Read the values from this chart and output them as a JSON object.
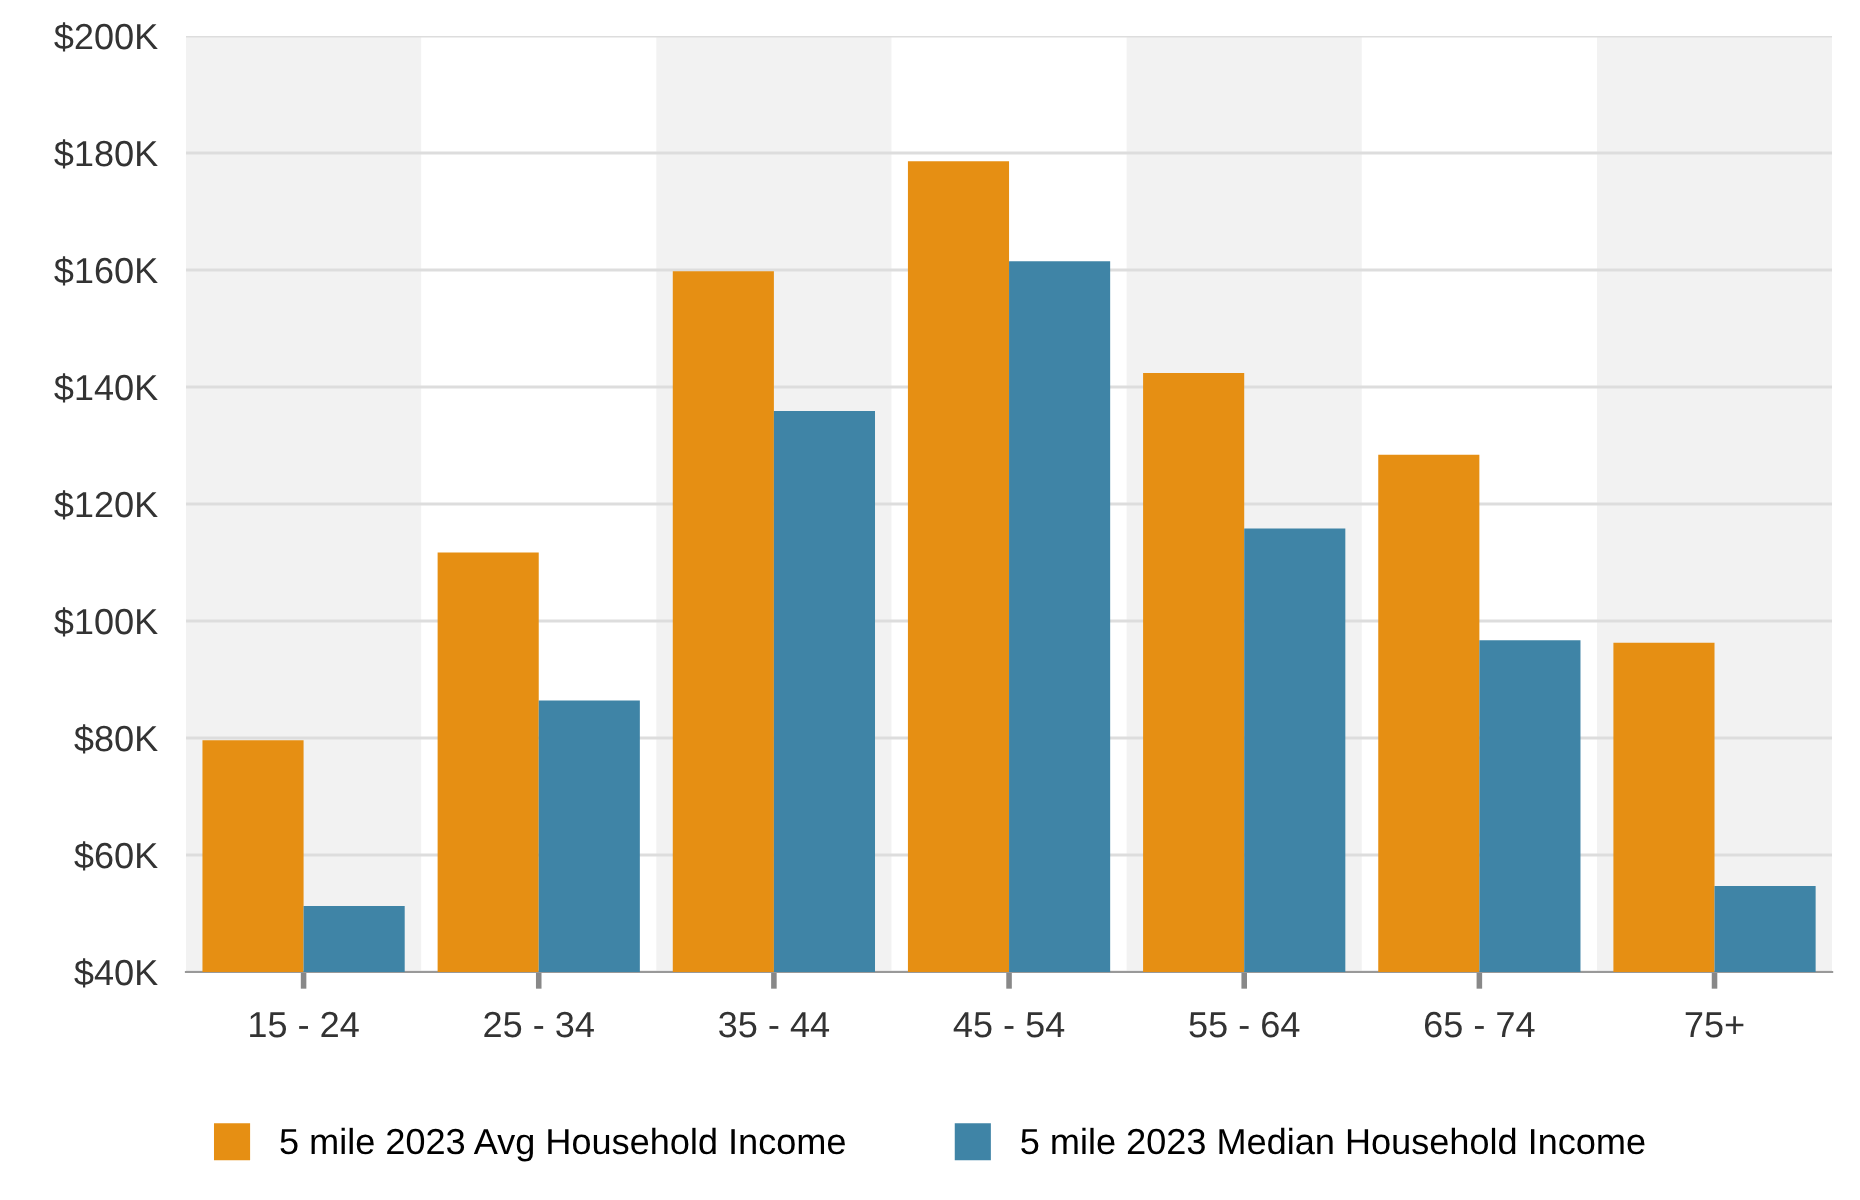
{
  "chart_data": {
    "type": "bar",
    "categories": [
      "15 - 24",
      "25 - 34",
      "35 - 44",
      "45 - 54",
      "55 - 64",
      "65 - 74",
      "75+"
    ],
    "series": [
      {
        "name": "5 mile 2023 Avg Household Income",
        "color": "#e68f13",
        "values": [
          79.6,
          111.7,
          159.8,
          178.6,
          142.4,
          128.4,
          96.3
        ]
      },
      {
        "name": "5 mile 2023 Median Household Income",
        "color": "#3f84a6",
        "values": [
          51.3,
          86.4,
          135.9,
          161.5,
          115.8,
          96.7,
          54.7
        ]
      }
    ],
    "ylim": [
      40,
      200
    ],
    "yticks": [
      {
        "value": 40,
        "label": "$40K"
      },
      {
        "value": 60,
        "label": "$60K"
      },
      {
        "value": 80,
        "label": "$80K"
      },
      {
        "value": 100,
        "label": "$100K"
      },
      {
        "value": 120,
        "label": "$120K"
      },
      {
        "value": 140,
        "label": "$140K"
      },
      {
        "value": 160,
        "label": "$160K"
      },
      {
        "value": 180,
        "label": "$180K"
      },
      {
        "value": 200,
        "label": "$200K"
      }
    ],
    "grid": "y",
    "legend": "bottom",
    "bands": [
      {
        "axis": "x",
        "from": "15 - 24",
        "to": "15 - 24",
        "color": "#f2f2f2"
      },
      {
        "axis": "x",
        "from": "35 - 44",
        "to": "35 - 44",
        "color": "#f2f2f2"
      },
      {
        "axis": "x",
        "from": "55 - 64",
        "to": "55 - 64",
        "color": "#f2f2f2"
      },
      {
        "axis": "x",
        "from": "75+",
        "to": "75+",
        "color": "#f2f2f2"
      }
    ]
  }
}
